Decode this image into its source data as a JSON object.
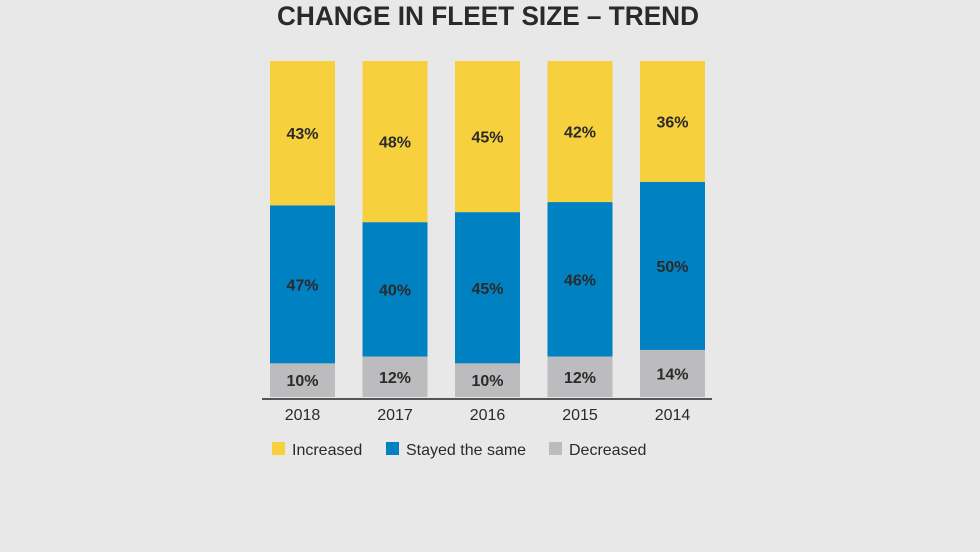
{
  "chart_data": {
    "type": "bar",
    "stacked": true,
    "title": "CHANGE IN FLEET SIZE – TREND",
    "categories": [
      "2018",
      "2017",
      "2016",
      "2015",
      "2014"
    ],
    "series": [
      {
        "name": "Increased",
        "color": "#f7d03e",
        "values": [
          43,
          48,
          45,
          42,
          36
        ]
      },
      {
        "name": "Stayed the same",
        "color": "#0081c1",
        "values": [
          47,
          40,
          45,
          46,
          50
        ]
      },
      {
        "name": "Decreased",
        "color": "#bcbcbf",
        "values": [
          10,
          12,
          10,
          12,
          14
        ]
      }
    ],
    "value_suffix": "%",
    "ylim": [
      0,
      100
    ],
    "grid": false,
    "legend_placement": "bottom"
  }
}
